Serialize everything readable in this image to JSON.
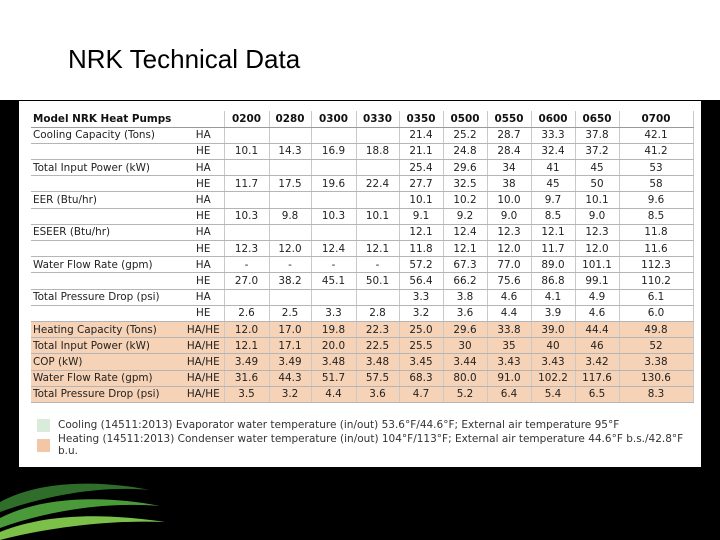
{
  "title": "NRK Technical Data",
  "colors": {
    "heating_row": "#f6d2b6",
    "cooling_swatch": "#d8ecd9",
    "heating_swatch": "#f3c7a6",
    "brand_green": "#7cc04a"
  },
  "table": {
    "header_label": "Model NRK Heat Pumps",
    "models": [
      "0200",
      "0280",
      "0300",
      "0330",
      "0350",
      "0500",
      "0550",
      "0600",
      "0650",
      "0700"
    ],
    "rows": [
      {
        "label": "Cooling Capacity (Tons)",
        "mode": "HA",
        "values": [
          "",
          "",
          "",
          "",
          "21.4",
          "25.2",
          "28.7",
          "33.3",
          "37.8",
          "42.1"
        ],
        "heat": false
      },
      {
        "label": "",
        "mode": "HE",
        "values": [
          "10.1",
          "14.3",
          "16.9",
          "18.8",
          "21.1",
          "24.8",
          "28.4",
          "32.4",
          "37.2",
          "41.2"
        ],
        "heat": false
      },
      {
        "label": "Total Input Power (kW)",
        "mode": "HA",
        "values": [
          "",
          "",
          "",
          "",
          "25.4",
          "29.6",
          "34",
          "41",
          "45",
          "53"
        ],
        "heat": false
      },
      {
        "label": "",
        "mode": "HE",
        "values": [
          "11.7",
          "17.5",
          "19.6",
          "22.4",
          "27.7",
          "32.5",
          "38",
          "45",
          "50",
          "58"
        ],
        "heat": false
      },
      {
        "label": "EER (Btu/hr)",
        "mode": "HA",
        "values": [
          "",
          "",
          "",
          "",
          "10.1",
          "10.2",
          "10.0",
          "9.7",
          "10.1",
          "9.6"
        ],
        "heat": false
      },
      {
        "label": "",
        "mode": "HE",
        "values": [
          "10.3",
          "9.8",
          "10.3",
          "10.1",
          "9.1",
          "9.2",
          "9.0",
          "8.5",
          "9.0",
          "8.5"
        ],
        "heat": false
      },
      {
        "label": "ESEER (Btu/hr)",
        "mode": "HA",
        "values": [
          "",
          "",
          "",
          "",
          "12.1",
          "12.4",
          "12.3",
          "12.1",
          "12.3",
          "11.8"
        ],
        "heat": false
      },
      {
        "label": "",
        "mode": "HE",
        "values": [
          "12.3",
          "12.0",
          "12.4",
          "12.1",
          "11.8",
          "12.1",
          "12.0",
          "11.7",
          "12.0",
          "11.6"
        ],
        "heat": false
      },
      {
        "label": "Water Flow Rate (gpm)",
        "mode": "HA",
        "values": [
          "-",
          "-",
          "-",
          "-",
          "57.2",
          "67.3",
          "77.0",
          "89.0",
          "101.1",
          "112.3"
        ],
        "heat": false
      },
      {
        "label": "",
        "mode": "HE",
        "values": [
          "27.0",
          "38.2",
          "45.1",
          "50.1",
          "56.4",
          "66.2",
          "75.6",
          "86.8",
          "99.1",
          "110.2"
        ],
        "heat": false
      },
      {
        "label": "Total Pressure Drop (psi)",
        "mode": "HA",
        "values": [
          "",
          "",
          "",
          "",
          "3.3",
          "3.8",
          "4.6",
          "4.1",
          "4.9",
          "6.1"
        ],
        "heat": false
      },
      {
        "label": "",
        "mode": "HE",
        "values": [
          "2.6",
          "2.5",
          "3.3",
          "2.8",
          "3.2",
          "3.6",
          "4.4",
          "3.9",
          "4.6",
          "6.0"
        ],
        "heat": false
      },
      {
        "label": "Heating Capacity (Tons)",
        "mode": "HA/HE",
        "values": [
          "12.0",
          "17.0",
          "19.8",
          "22.3",
          "25.0",
          "29.6",
          "33.8",
          "39.0",
          "44.4",
          "49.8"
        ],
        "heat": true
      },
      {
        "label": "Total Input Power (kW)",
        "mode": "HA/HE",
        "values": [
          "12.1",
          "17.1",
          "20.0",
          "22.5",
          "25.5",
          "30",
          "35",
          "40",
          "46",
          "52"
        ],
        "heat": true
      },
      {
        "label": "COP (kW)",
        "mode": "HA/HE",
        "values": [
          "3.49",
          "3.49",
          "3.48",
          "3.48",
          "3.45",
          "3.44",
          "3.43",
          "3.43",
          "3.42",
          "3.38"
        ],
        "heat": true
      },
      {
        "label": "Water Flow Rate (gpm)",
        "mode": "HA/HE",
        "values": [
          "31.6",
          "44.3",
          "51.7",
          "57.5",
          "68.3",
          "80.0",
          "91.0",
          "102.2",
          "117.6",
          "130.6"
        ],
        "heat": true
      },
      {
        "label": "Total Pressure Drop (psi)",
        "mode": "HA/HE",
        "values": [
          "3.5",
          "3.2",
          "4.4",
          "3.6",
          "4.7",
          "5.2",
          "6.4",
          "5.4",
          "6.5",
          "8.3"
        ],
        "heat": true
      }
    ]
  },
  "legend": [
    {
      "text": "Cooling (14511:2013) Evaporator water temperature (in/out) 53.6°F/44.6°F; External air temperature 95°F",
      "color": "#d8ecd9"
    },
    {
      "text": "Heating (14511:2013) Condenser water temperature (in/out) 104°F/113°F; External air temperature 44.6°F b.s./42.8°F b.u.",
      "color": "#f3c7a6"
    }
  ]
}
